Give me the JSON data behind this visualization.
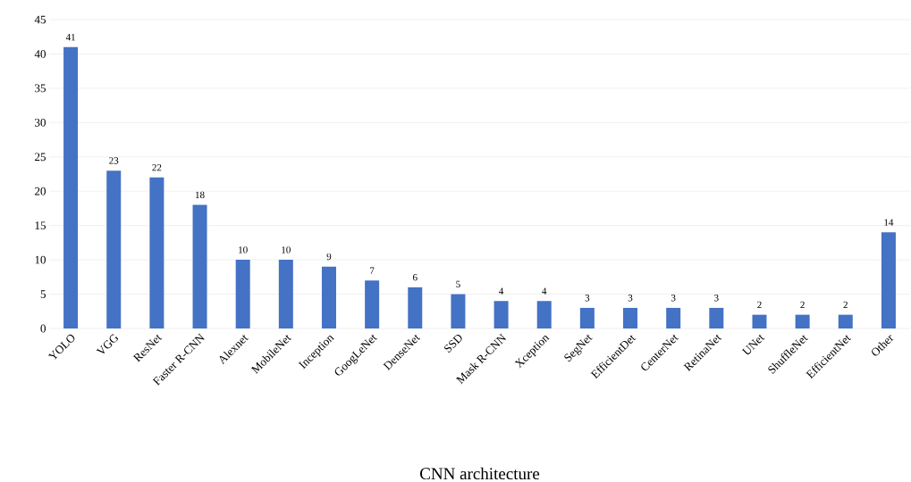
{
  "chart_data": {
    "type": "bar",
    "xlabel": "CNN architecture",
    "categories": [
      "YOLO",
      "VGG",
      "ResNet",
      "Faster R-CNN",
      "Alexnet",
      "MobileNet",
      "Inception",
      "GoogLeNet",
      "DenseNet",
      "SSD",
      "Mask R-CNN",
      "Xception",
      "SegNet",
      "EfficientDet",
      "CenterNet",
      "RetinaNet",
      "UNet",
      "ShuffleNet",
      "EfficientNet",
      "Other"
    ],
    "values": [
      41,
      23,
      22,
      18,
      10,
      10,
      9,
      7,
      6,
      5,
      4,
      4,
      3,
      3,
      3,
      3,
      2,
      2,
      2,
      14
    ],
    "color": "#4472c4",
    "ylim": [
      0,
      45
    ],
    "yticks": [
      0,
      5,
      10,
      15,
      20,
      25,
      30,
      35,
      40,
      45
    ],
    "grid": "y",
    "data_labels": true
  }
}
